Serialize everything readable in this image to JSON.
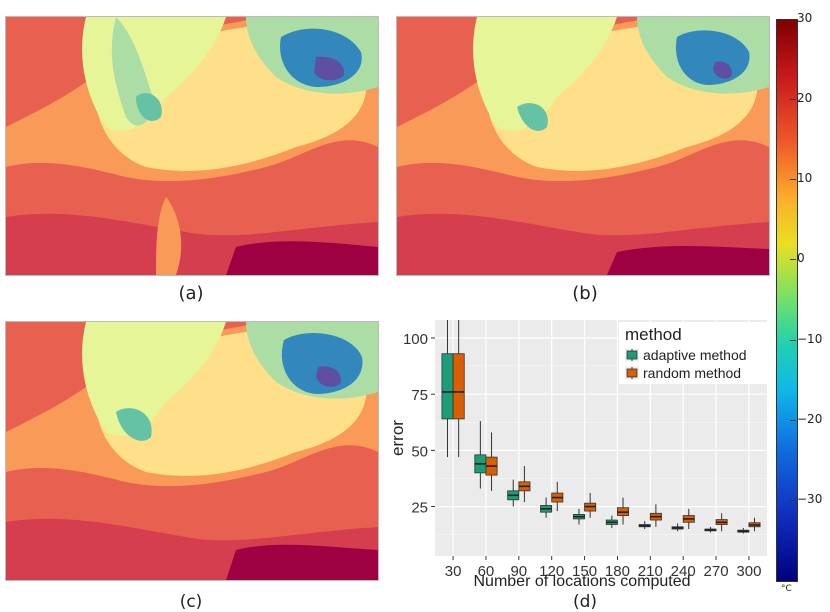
{
  "panels": {
    "a": "(a)",
    "b": "(b)",
    "c": "(c)",
    "d": "(d)"
  },
  "colorbar": {
    "ticks": [
      "30",
      "20",
      "10",
      "0",
      "−10",
      "−20",
      "−30"
    ],
    "tick_values": [
      30,
      20,
      10,
      0,
      -10,
      -20,
      -30
    ],
    "range": [
      -40,
      30
    ],
    "unit": "°C"
  },
  "chart_data": {
    "type": "boxplot",
    "xlabel": "Number of locations computed",
    "ylabel": "error",
    "categories": [
      "30",
      "60",
      "90",
      "120",
      "150",
      "180",
      "210",
      "240",
      "270",
      "300"
    ],
    "ylim": [
      3,
      108
    ],
    "yticks": [
      25,
      50,
      75,
      100
    ],
    "legend": {
      "title": "method",
      "placement": "top-right",
      "entries": [
        "adaptive method",
        "random method"
      ]
    },
    "series": [
      {
        "name": "adaptive method",
        "color": "#1b9e77",
        "boxes": [
          {
            "min": 47,
            "q1": 64,
            "median": 76,
            "q3": 93,
            "max": 110
          },
          {
            "min": 33,
            "q1": 40,
            "median": 44,
            "q3": 48,
            "max": 63
          },
          {
            "min": 25,
            "q1": 28,
            "median": 30,
            "q3": 32,
            "max": 37
          },
          {
            "min": 20,
            "q1": 22.5,
            "median": 24,
            "q3": 25.5,
            "max": 29
          },
          {
            "min": 17,
            "q1": 19.5,
            "median": 20.5,
            "q3": 21.5,
            "max": 24
          },
          {
            "min": 15.5,
            "q1": 17,
            "median": 18,
            "q3": 19,
            "max": 21
          },
          {
            "min": 15,
            "q1": 16,
            "median": 16.5,
            "q3": 17,
            "max": 18.5
          },
          {
            "min": 14,
            "q1": 15,
            "median": 15.5,
            "q3": 16,
            "max": 17.5
          },
          {
            "min": 13.5,
            "q1": 14.2,
            "median": 14.6,
            "q3": 15,
            "max": 16
          },
          {
            "min": 13,
            "q1": 13.6,
            "median": 14,
            "q3": 14.5,
            "max": 15.5
          }
        ]
      },
      {
        "name": "random method",
        "color": "#d95f02",
        "boxes": [
          {
            "min": 47,
            "q1": 64,
            "median": 76,
            "q3": 93,
            "max": 110
          },
          {
            "min": 32,
            "q1": 39,
            "median": 43,
            "q3": 47,
            "max": 58
          },
          {
            "min": 27,
            "q1": 32,
            "median": 34,
            "q3": 36,
            "max": 43
          },
          {
            "min": 23,
            "q1": 27,
            "median": 29,
            "q3": 31,
            "max": 36
          },
          {
            "min": 20,
            "q1": 23,
            "median": 25,
            "q3": 26.5,
            "max": 31
          },
          {
            "min": 17,
            "q1": 21,
            "median": 22.5,
            "q3": 24.5,
            "max": 29
          },
          {
            "min": 16,
            "q1": 19,
            "median": 20.5,
            "q3": 22,
            "max": 26
          },
          {
            "min": 15,
            "q1": 18,
            "median": 19.5,
            "q3": 21,
            "max": 24
          },
          {
            "min": 14,
            "q1": 17,
            "median": 18,
            "q3": 19.2,
            "max": 22
          },
          {
            "min": 14,
            "q1": 16,
            "median": 16.8,
            "q3": 17.8,
            "max": 20
          }
        ]
      }
    ]
  }
}
